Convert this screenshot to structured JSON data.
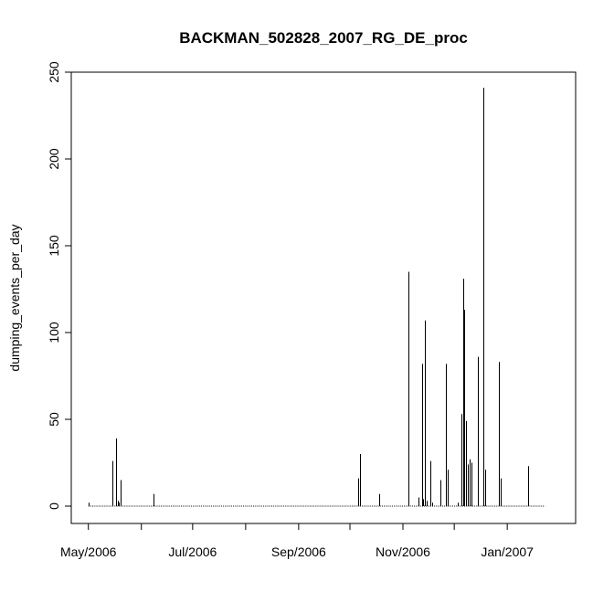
{
  "chart_data": {
    "type": "bar",
    "title": "BACKMAN_502828_2007_RG_DE_proc",
    "xlabel": "",
    "ylabel": "dumping_events_per_day",
    "ylim": [
      0,
      250
    ],
    "xlim": [
      "2006-04-21",
      "2007-02-10"
    ],
    "yticks": [
      0,
      50,
      100,
      150,
      200,
      250
    ],
    "xtick_labels": [
      {
        "date": "2006-05-01",
        "label": "May/2006"
      },
      {
        "date": "2006-07-01",
        "label": "Jul/2006"
      },
      {
        "date": "2006-09-01",
        "label": "Sep/2006"
      },
      {
        "date": "2006-11-01",
        "label": "Nov/2006"
      },
      {
        "date": "2007-01-01",
        "label": "Jan/2007"
      }
    ],
    "minor_x_ticks": [
      "2006-06-01",
      "2006-08-01",
      "2006-10-01",
      "2006-12-01"
    ],
    "baseline_range": [
      "2006-05-01",
      "2007-01-23"
    ],
    "series": [
      {
        "points": [
          {
            "x": "2006-05-01",
            "y": 2
          },
          {
            "x": "2006-05-15",
            "y": 26
          },
          {
            "x": "2006-05-17",
            "y": 39
          },
          {
            "x": "2006-05-18",
            "y": 3
          },
          {
            "x": "2006-05-19",
            "y": 2
          },
          {
            "x": "2006-05-20",
            "y": 15
          },
          {
            "x": "2006-06-08",
            "y": 7
          },
          {
            "x": "2006-10-06",
            "y": 16
          },
          {
            "x": "2006-10-07",
            "y": 30
          },
          {
            "x": "2006-10-18",
            "y": 7
          },
          {
            "x": "2006-11-04",
            "y": 135
          },
          {
            "x": "2006-11-10",
            "y": 5
          },
          {
            "x": "2006-11-12",
            "y": 82
          },
          {
            "x": "2006-11-13",
            "y": 4
          },
          {
            "x": "2006-11-14",
            "y": 107
          },
          {
            "x": "2006-11-15",
            "y": 3
          },
          {
            "x": "2006-11-17",
            "y": 26
          },
          {
            "x": "2006-11-18",
            "y": 2
          },
          {
            "x": "2006-11-23",
            "y": 15
          },
          {
            "x": "2006-11-26",
            "y": 82
          },
          {
            "x": "2006-11-27",
            "y": 21
          },
          {
            "x": "2006-12-03",
            "y": 2
          },
          {
            "x": "2006-12-05",
            "y": 53
          },
          {
            "x": "2006-12-06",
            "y": 131
          },
          {
            "x": "2006-12-07",
            "y": 113
          },
          {
            "x": "2006-12-08",
            "y": 49
          },
          {
            "x": "2006-12-09",
            "y": 24
          },
          {
            "x": "2006-12-10",
            "y": 27
          },
          {
            "x": "2006-12-11",
            "y": 25
          },
          {
            "x": "2006-12-15",
            "y": 86
          },
          {
            "x": "2006-12-18",
            "y": 241
          },
          {
            "x": "2006-12-19",
            "y": 21
          },
          {
            "x": "2006-12-27",
            "y": 83
          },
          {
            "x": "2006-12-28",
            "y": 16
          },
          {
            "x": "2007-01-13",
            "y": 23
          }
        ]
      }
    ],
    "colors": {
      "line": "#000000",
      "background": "#ffffff"
    }
  }
}
